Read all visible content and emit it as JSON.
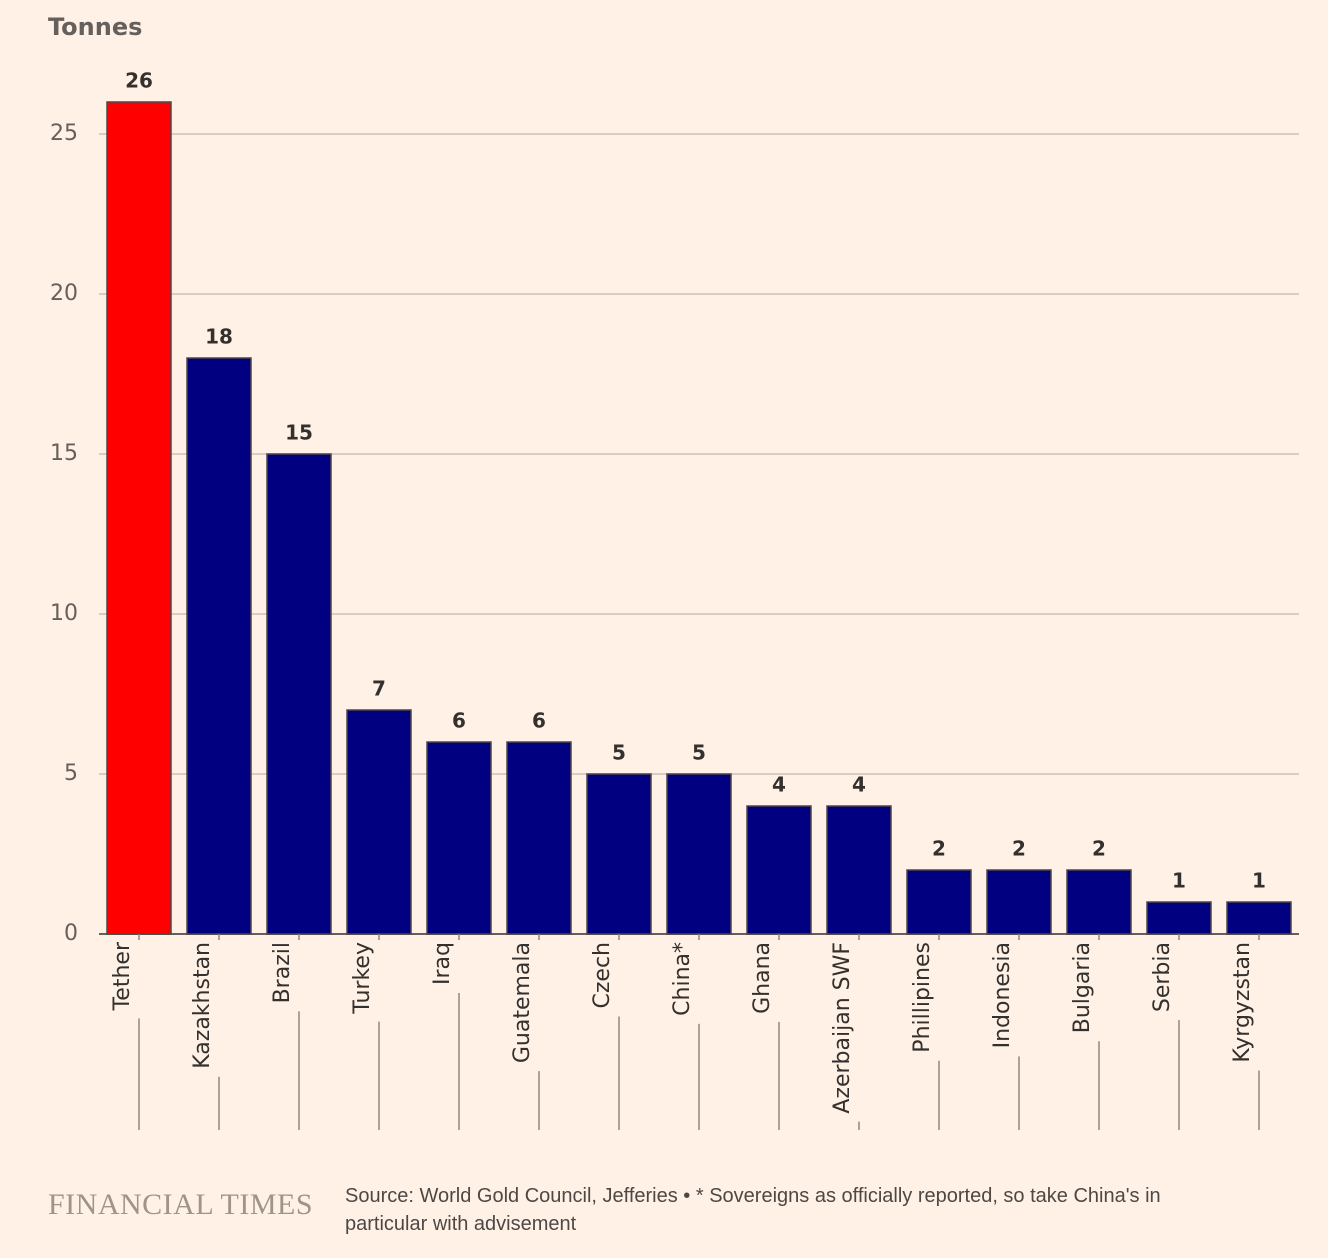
{
  "chart_data": {
    "type": "bar",
    "y_label": "Tonnes",
    "categories": [
      "Tether",
      "Kazakhstan",
      "Brazil",
      "Turkey",
      "Iraq",
      "Guatemala",
      "Czech",
      "China*",
      "Ghana",
      "Azerbaijan SWF",
      "Phillipines",
      "Indonesia",
      "Bulgaria",
      "Serbia",
      "Kyrgyzstan"
    ],
    "values": [
      26,
      18,
      15,
      7,
      6,
      6,
      5,
      5,
      4,
      4,
      2,
      2,
      2,
      1,
      1
    ],
    "colors": [
      "#ff0000",
      "#000080",
      "#000080",
      "#000080",
      "#000080",
      "#000080",
      "#000080",
      "#000080",
      "#000080",
      "#000080",
      "#000080",
      "#000080",
      "#000080",
      "#000080",
      "#000080"
    ],
    "ylim": [
      0,
      26
    ],
    "yticks": [
      0,
      5,
      10,
      15,
      20,
      25
    ],
    "grid": true
  },
  "footer": {
    "logo": "FINANCIAL TIMES",
    "source": "Source: World Gold Council, Jefferies • * Sovereigns as officially reported, so take China's in particular with advisement"
  }
}
